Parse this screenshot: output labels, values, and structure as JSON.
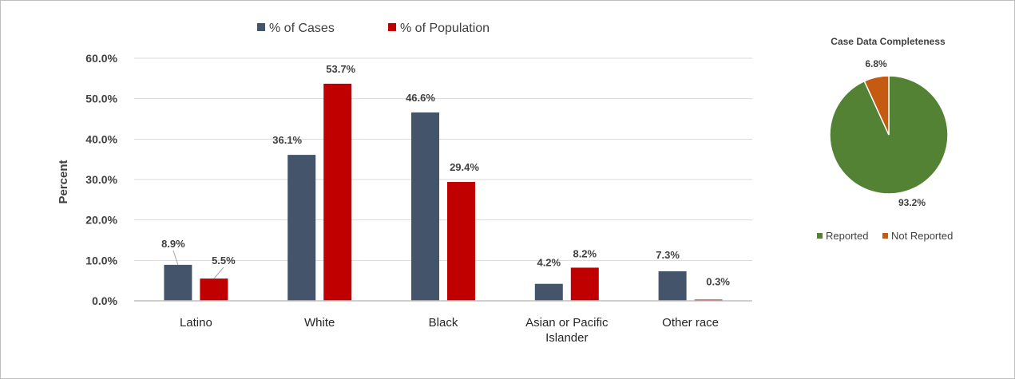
{
  "chart_data": [
    {
      "type": "bar",
      "title": "",
      "xlabel": "",
      "ylabel": "Percent",
      "ylim": [
        0,
        60
      ],
      "yticks": [
        "0.0%",
        "10.0%",
        "20.0%",
        "30.0%",
        "40.0%",
        "50.0%",
        "60.0%"
      ],
      "categories": [
        "Latino",
        "White",
        "Black",
        "Asian or Pacific Islander",
        "Other race"
      ],
      "series": [
        {
          "name": "% of Cases",
          "color": "#44546a",
          "values": [
            8.9,
            36.1,
            46.6,
            4.2,
            7.3
          ],
          "labels": [
            "8.9%",
            "36.1%",
            "46.6%",
            "4.2%",
            "7.3%"
          ]
        },
        {
          "name": "% of Population",
          "color": "#c00000",
          "values": [
            5.5,
            53.7,
            29.4,
            8.2,
            0.3
          ],
          "labels": [
            "5.5%",
            "53.7%",
            "29.4%",
            "8.2%",
            "0.3%"
          ]
        }
      ],
      "grid": true,
      "legend": "top"
    },
    {
      "type": "pie",
      "title": "Case Data Completeness",
      "slices": [
        {
          "name": "Reported",
          "value": 93.2,
          "label": "93.2%",
          "color": "#548235"
        },
        {
          "name": "Not Reported",
          "value": 6.8,
          "label": "6.8%",
          "color": "#c55a11"
        }
      ],
      "legend": "bottom"
    }
  ]
}
